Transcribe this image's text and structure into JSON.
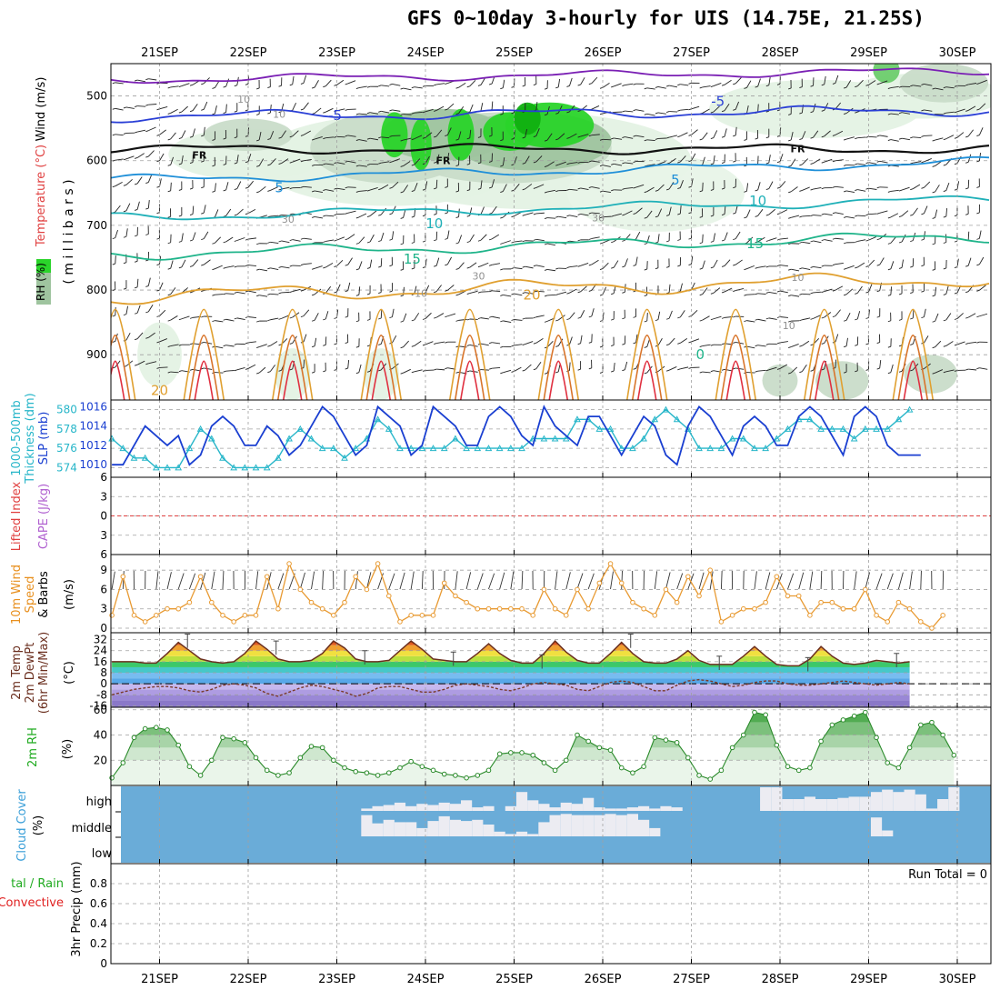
{
  "title": "GFS 0~10day 3-hourly for UIS (14.75E, 21.25S)",
  "dates": [
    "21SEP",
    "22SEP",
    "23SEP",
    "24SEP",
    "25SEP",
    "26SEP",
    "27SEP",
    "28SEP",
    "29SEP",
    "30SEP"
  ],
  "colors": {
    "background": "#ffffff",
    "grid": "#a0a0a0",
    "rh_green": "#1fd51f",
    "slp": "#1a3fd1",
    "thickness": "#27b6c9",
    "wind_speed": "#e89a32",
    "temperature": "#6b2f1f",
    "dewpoint": "#7a3b2a",
    "rh2m": "#3aa83a",
    "cloud": "#6aacd8",
    "precip_label": "#1faa1f",
    "convective_label": "#e02020"
  },
  "labels": {
    "upper_wind": "Wind (m/s)",
    "upper_temp": "Temperature (°C)",
    "upper_rh": "RH (%)",
    "upper_units": "( m i l l i b a r s )",
    "freezing_level": "FR",
    "slp_thick_1": "1000-500mb",
    "slp_thick_2": "Thickness (dm)",
    "slp_label": "SLP (mb)",
    "cape_label": "CAPE (J/kg)",
    "li_label": "Lifted Index",
    "wind10_1": "10m Wind",
    "wind10_2": "Speed",
    "wind10_3": "& Barbs",
    "wind10_units": "(m/s)",
    "temp_1": "2m Temp",
    "temp_2": "2m DewPt",
    "temp_3": "(6hr Min/Max)",
    "temp_units": "(°C)",
    "rh2m": "2m RH",
    "rh2m_units": "(%)",
    "cloud_1": "Cloud Cover",
    "cloud_units": "(%)",
    "cloud_high": "high",
    "cloud_middle": "middle",
    "cloud_low": "low",
    "precip_1": "tal / Rain",
    "precip_2": "Convective",
    "precip_3": "3hr Precip (mm)",
    "run_total": "Run Total = 0"
  },
  "chart_data": [
    {
      "type": "contour",
      "panel": "upper-air cross section",
      "y_ticks": [
        500,
        600,
        700,
        800,
        900
      ],
      "ylim": [
        450,
        970
      ],
      "yscale": "pressure",
      "temperature_contour_labels": [
        {
          "value": "-5",
          "day": 1.98,
          "p": 530
        },
        {
          "value": "-5",
          "day": 6.3,
          "p": 508
        },
        {
          "value": "FR",
          "day": 0.45,
          "p": 590
        },
        {
          "value": "FR",
          "day": 3.2,
          "p": 598
        },
        {
          "value": "FR",
          "day": 7.2,
          "p": 580
        },
        {
          "value": "5",
          "day": 1.35,
          "p": 642
        },
        {
          "value": "5",
          "day": 5.82,
          "p": 630
        },
        {
          "value": "10",
          "day": 3.1,
          "p": 697
        },
        {
          "value": "10",
          "day": 6.75,
          "p": 662
        },
        {
          "value": "15",
          "day": 2.85,
          "p": 752
        },
        {
          "value": "15",
          "day": 6.72,
          "p": 728
        },
        {
          "value": "20",
          "day": 4.2,
          "p": 808
        },
        {
          "value": "20",
          "day": 0.0,
          "p": 955
        },
        {
          "value": "0",
          "day": 6.1,
          "p": 900
        }
      ],
      "rh_contour_labels": [
        {
          "value": "10",
          "day": 0.95,
          "p": 505
        },
        {
          "value": "10",
          "day": 1.35,
          "p": 528
        },
        {
          "value": "30",
          "day": 1.45,
          "p": 690
        },
        {
          "value": "30",
          "day": 4.95,
          "p": 688
        },
        {
          "value": "30",
          "day": 3.6,
          "p": 778
        },
        {
          "value": "10",
          "day": 2.95,
          "p": 805
        },
        {
          "value": "10",
          "day": 7.2,
          "p": 780
        },
        {
          "value": "10",
          "day": 7.1,
          "p": 855
        }
      ],
      "temp_levels": [
        {
          "label": "-10",
          "color": "#7a1fb4",
          "base": 475,
          "amp": 7
        },
        {
          "label": "-5",
          "color": "#2a3fd6",
          "base": 532,
          "amp": 9
        },
        {
          "label": "FR",
          "color": "#111111",
          "base": 582,
          "amp": 8
        },
        {
          "label": "5",
          "color": "#1f8fd8",
          "base": 630,
          "amp": 8
        },
        {
          "label": "10",
          "color": "#1fb0b8",
          "base": 688,
          "amp": 8
        },
        {
          "label": "15",
          "color": "#1fb48a",
          "base": 745,
          "amp": 10
        },
        {
          "label": "20",
          "color": "#e0a030",
          "base": 810,
          "amp": 14
        }
      ]
    },
    {
      "type": "line",
      "panel": "slp-thickness",
      "x_step_hours": 3,
      "series": [
        {
          "name": "SLP (mb)",
          "axis": "right",
          "values": [
            1010,
            1010,
            1012,
            1014,
            1013,
            1012,
            1013,
            1010,
            1011,
            1014,
            1015,
            1014,
            1012,
            1012,
            1014,
            1013,
            1011,
            1012,
            1014,
            1016,
            1015,
            1013,
            1011,
            1012,
            1016,
            1015,
            1014,
            1011,
            1012,
            1016,
            1015,
            1014,
            1012,
            1012,
            1015,
            1016,
            1015,
            1013,
            1012,
            1016,
            1014,
            1013,
            1012,
            1015,
            1015,
            1013,
            1011,
            1013,
            1015,
            1014,
            1011,
            1010,
            1014,
            1016,
            1015,
            1013,
            1011,
            1014,
            1015,
            1014,
            1012,
            1012,
            1015,
            1016,
            1015,
            1013,
            1011,
            1015,
            1016,
            1015,
            1012,
            1011,
            1011,
            1011
          ]
        },
        {
          "name": "Thickness (dm)",
          "axis": "left",
          "values": [
            577,
            576,
            575,
            575,
            574,
            574,
            574,
            576,
            578,
            577,
            575,
            574,
            574,
            574,
            574,
            575,
            577,
            578,
            577,
            576,
            576,
            575,
            576,
            577,
            579,
            578,
            576,
            576,
            576,
            576,
            576,
            577,
            576,
            576,
            576,
            576,
            576,
            576,
            577,
            577,
            577,
            577,
            579,
            579,
            578,
            578,
            576,
            576,
            577,
            579,
            580,
            579,
            578,
            576,
            576,
            576,
            577,
            577,
            576,
            576,
            577,
            578,
            579,
            579,
            578,
            578,
            578,
            577,
            578,
            578,
            578,
            579,
            580
          ]
        }
      ],
      "y_left_ticks": [
        574,
        576,
        578,
        580
      ],
      "y_right_ticks": [
        1010,
        1012,
        1014,
        1016
      ],
      "ylim_left": [
        573,
        581
      ],
      "ylim_right": [
        1008.7,
        1016.7
      ]
    },
    {
      "type": "line",
      "panel": "cape-lifted-index",
      "y_ticks": [
        -6,
        -3,
        0,
        3,
        6
      ],
      "ylim": [
        -6,
        6
      ],
      "zero_line": 0
    },
    {
      "type": "line",
      "panel": "10m-wind",
      "x_step_hours": 3,
      "series": [
        {
          "name": "Speed",
          "values": [
            2,
            8,
            2,
            1,
            2,
            3,
            3,
            4,
            8,
            4,
            2,
            1,
            2,
            2,
            8,
            3,
            10,
            6,
            4,
            3,
            2,
            4,
            8,
            6,
            10,
            5,
            1,
            2,
            2,
            2,
            7,
            5,
            4,
            3,
            3,
            3,
            3,
            3,
            2,
            6,
            3,
            2,
            6,
            3,
            7,
            10,
            7,
            4,
            3,
            2,
            6,
            4,
            8,
            5,
            9,
            1,
            2,
            3,
            3,
            4,
            8,
            5,
            5,
            2,
            4,
            4,
            3,
            3,
            6,
            2,
            1,
            4,
            3,
            1,
            0,
            2
          ]
        }
      ],
      "y_ticks": [
        0,
        3,
        6,
        9
      ],
      "ylim": [
        0,
        11
      ]
    },
    {
      "type": "line",
      "panel": "2m-temp-dewpt",
      "x_step_hours": 3,
      "series": [
        {
          "name": "2m Temp",
          "values": [
            16,
            16,
            16,
            15,
            15,
            22,
            30,
            24,
            18,
            16,
            15,
            16,
            22,
            31,
            25,
            18,
            16,
            16,
            17,
            22,
            31,
            26,
            18,
            16,
            16,
            17,
            24,
            31,
            25,
            18,
            17,
            16,
            16,
            22,
            29,
            22,
            17,
            15,
            15,
            22,
            31,
            23,
            17,
            15,
            15,
            22,
            30,
            22,
            16,
            15,
            15,
            18,
            24,
            17,
            14,
            14,
            14,
            20,
            27,
            20,
            14,
            13,
            13,
            18,
            27,
            20,
            15,
            14,
            15,
            17,
            16,
            15,
            16
          ]
        },
        {
          "name": "2m DewPt",
          "values": [
            -8,
            -6,
            -4,
            -3,
            -2,
            -2,
            -3,
            -5,
            -6,
            -4,
            -1,
            0,
            -1,
            -3,
            -7,
            -9,
            -6,
            -3,
            -1,
            -2,
            -4,
            -6,
            -9,
            -7,
            -3,
            -2,
            -2,
            -4,
            -6,
            -6,
            -4,
            -1,
            0,
            -1,
            -2,
            -4,
            -5,
            -3,
            0,
            1,
            0,
            -1,
            -4,
            -5,
            -2,
            1,
            2,
            1,
            -2,
            -5,
            -5,
            -1,
            2,
            3,
            2,
            0,
            -2,
            -1,
            1,
            2,
            2,
            0,
            -1,
            -1,
            0,
            1,
            2,
            1,
            0,
            -1,
            0,
            1,
            0
          ]
        }
      ],
      "y_ticks": [
        -16,
        -8,
        0,
        8,
        16,
        24,
        32
      ],
      "ylim": [
        -17,
        37
      ]
    },
    {
      "type": "area",
      "panel": "2m-rh",
      "x_step_hours": 3,
      "series": [
        {
          "name": "2m RH",
          "values": [
            6,
            18,
            38,
            45,
            46,
            44,
            32,
            15,
            8,
            20,
            38,
            37,
            34,
            22,
            12,
            8,
            10,
            22,
            31,
            30,
            20,
            14,
            11,
            10,
            8,
            10,
            14,
            19,
            15,
            12,
            9,
            8,
            6,
            8,
            12,
            25,
            26,
            26,
            24,
            18,
            12,
            20,
            40,
            35,
            30,
            28,
            14,
            10,
            15,
            38,
            36,
            34,
            22,
            8,
            5,
            12,
            30,
            40,
            58,
            56,
            32,
            15,
            12,
            14,
            35,
            48,
            52,
            55,
            58,
            38,
            18,
            14,
            30,
            48,
            50,
            40,
            24
          ]
        }
      ],
      "y_ticks": [
        20,
        40,
        60
      ],
      "ylim": [
        0,
        62
      ]
    },
    {
      "type": "bar",
      "panel": "cloud-cover",
      "layers": [
        "low",
        "middle",
        "high"
      ],
      "high_fraction": [
        0,
        0,
        0,
        0,
        0,
        0,
        0,
        0,
        0,
        0,
        0,
        0,
        0,
        0,
        0,
        0,
        0,
        0,
        0,
        0,
        0,
        0,
        0,
        0.1,
        0.2,
        0.25,
        0.35,
        0.2,
        0.3,
        0.25,
        0.35,
        0.3,
        0.45,
        0.15,
        0.2,
        0,
        0.2,
        0.8,
        0.45,
        0.3,
        0.15,
        0.35,
        0.3,
        0.55,
        0.15,
        0.1,
        0.1,
        0.15,
        0.2,
        0.1,
        0.2,
        0.15,
        0,
        0,
        0,
        0,
        0,
        0,
        0,
        1,
        1,
        0.5,
        0.5,
        0.6,
        0.5,
        0.5,
        0.55,
        0.6,
        0.6,
        0.8,
        0.9,
        0.8,
        0.9,
        0.7,
        0.1,
        0.5,
        1
      ],
      "middle_fraction": [
        0,
        0,
        0,
        0,
        0,
        0,
        0,
        0,
        0,
        0,
        0,
        0,
        0,
        0,
        0,
        0,
        0,
        0,
        0,
        0,
        0,
        0,
        0,
        0.9,
        0.55,
        0.7,
        0.6,
        0.6,
        0.35,
        0.65,
        0.85,
        0.7,
        0.65,
        0.7,
        0.5,
        0.2,
        0.1,
        0.2,
        0.1,
        0.6,
        0.9,
        0.95,
        0.9,
        0.9,
        0.9,
        0.95,
        0.9,
        0.95,
        0.7,
        0.35,
        0,
        0,
        0,
        0,
        0,
        0,
        0,
        0,
        0,
        0,
        0,
        0,
        0,
        0,
        0,
        0,
        0,
        0,
        0,
        0.8,
        0.25,
        0,
        0,
        0,
        0,
        0,
        0
      ]
    },
    {
      "type": "bar",
      "panel": "3hr-precip",
      "y_ticks": [
        0,
        0.2,
        0.4,
        0.6,
        0.8
      ],
      "ylim": [
        0,
        1.0
      ],
      "values": []
    }
  ]
}
